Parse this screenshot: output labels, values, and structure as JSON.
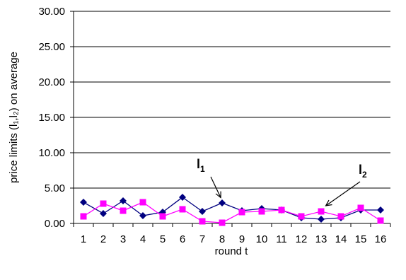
{
  "chart_data": {
    "type": "line",
    "title": "",
    "xlabel": "round t",
    "ylabel": "price limits (l₁,l₂) on average",
    "ylim": [
      0,
      30
    ],
    "yticks": [
      "0.00",
      "5.00",
      "10.00",
      "15.00",
      "20.00",
      "25.00",
      "30.00"
    ],
    "grid": "horizontal",
    "x": [
      1,
      2,
      3,
      4,
      5,
      6,
      7,
      8,
      9,
      10,
      11,
      12,
      13,
      14,
      15,
      16
    ],
    "series": [
      {
        "name": "l1",
        "color": "#000080",
        "marker": "diamond",
        "values": [
          3.0,
          1.4,
          3.2,
          1.1,
          1.6,
          3.7,
          1.7,
          2.9,
          1.8,
          2.1,
          1.9,
          0.8,
          0.6,
          0.8,
          1.9,
          1.9
        ]
      },
      {
        "name": "l2",
        "color": "#FF00FF",
        "marker": "square",
        "values": [
          1.0,
          2.8,
          1.8,
          3.0,
          1.0,
          2.0,
          0.3,
          0.1,
          1.6,
          1.7,
          1.9,
          1.0,
          1.7,
          1.0,
          2.2,
          0.4
        ]
      }
    ],
    "annotations": [
      {
        "label": "l",
        "subscript": "1",
        "target_series": 0,
        "target_x": 8
      },
      {
        "label": "l",
        "subscript": "2",
        "target_series": 1,
        "target_x": 13
      }
    ]
  }
}
